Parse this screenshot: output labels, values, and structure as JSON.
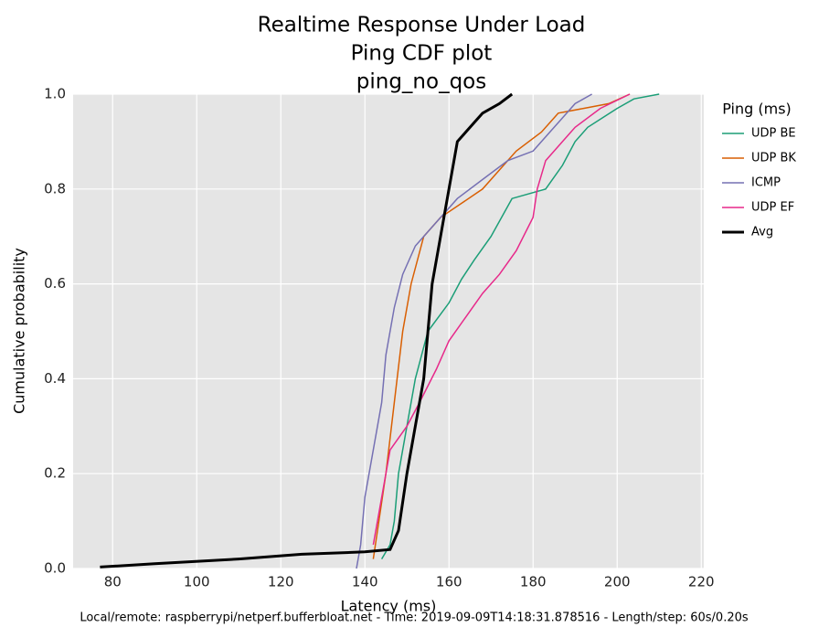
{
  "chart_data": {
    "type": "line",
    "title_lines": [
      "Realtime Response Under Load",
      "Ping CDF plot",
      "ping_no_qos"
    ],
    "x_label": "Latency (ms)",
    "y_label": "Cumulative probability",
    "footer": "Local/remote: raspberrypi/netperf.bufferbloat.net - Time: 2019-09-09T14:18:31.878516 - Length/step: 60s/0.20s",
    "legend_title": "Ping (ms)",
    "legend_position": "outside right",
    "grid": true,
    "xlim": [
      70.6,
      220.6
    ],
    "ylim": [
      0,
      1
    ],
    "xticks": [
      80,
      100,
      120,
      140,
      160,
      180,
      200,
      220
    ],
    "yticks": [
      {
        "value": 0,
        "label": "0.0"
      },
      {
        "value": 0.2,
        "label": "0.2"
      },
      {
        "value": 0.4,
        "label": "0.4"
      },
      {
        "value": 0.6,
        "label": "0.6"
      },
      {
        "value": 0.8,
        "label": "0.8"
      },
      {
        "value": 1,
        "label": "1.0"
      }
    ],
    "series": [
      {
        "name": "UDP BE",
        "color": "#1b9e77",
        "width": 1.5,
        "x": [
          144,
          146,
          147,
          148,
          150,
          152,
          155,
          160,
          163,
          166,
          170,
          175,
          183,
          187,
          190,
          193,
          200,
          204,
          210
        ],
        "values": [
          0.02,
          0.05,
          0.1,
          0.2,
          0.3,
          0.4,
          0.5,
          0.56,
          0.61,
          0.65,
          0.7,
          0.78,
          0.8,
          0.85,
          0.9,
          0.93,
          0.97,
          0.99,
          1.0
        ]
      },
      {
        "name": "UDP BK",
        "color": "#d95f02",
        "width": 1.5,
        "x": [
          142,
          143,
          145,
          147,
          149,
          151,
          154,
          158,
          163,
          168,
          172,
          176,
          182,
          186,
          192,
          198,
          203
        ],
        "values": [
          0.02,
          0.08,
          0.2,
          0.35,
          0.5,
          0.6,
          0.7,
          0.74,
          0.77,
          0.8,
          0.84,
          0.88,
          0.92,
          0.96,
          0.97,
          0.98,
          1.0
        ]
      },
      {
        "name": "ICMP",
        "color": "#7570b3",
        "width": 1.5,
        "x": [
          138,
          139,
          140,
          142,
          144,
          145,
          147,
          149,
          152,
          157,
          162,
          168,
          174,
          180,
          184,
          187,
          190,
          194
        ],
        "values": [
          0.0,
          0.05,
          0.15,
          0.25,
          0.35,
          0.45,
          0.55,
          0.62,
          0.68,
          0.73,
          0.78,
          0.82,
          0.86,
          0.88,
          0.92,
          0.95,
          0.98,
          1.0
        ]
      },
      {
        "name": "UDP EF",
        "color": "#e7298a",
        "width": 1.5,
        "x": [
          142,
          144,
          146,
          150,
          153,
          157,
          160,
          164,
          168,
          172,
          176,
          180,
          181,
          183,
          187,
          190,
          196,
          203
        ],
        "values": [
          0.05,
          0.15,
          0.25,
          0.3,
          0.35,
          0.42,
          0.48,
          0.53,
          0.58,
          0.62,
          0.67,
          0.74,
          0.8,
          0.86,
          0.9,
          0.93,
          0.97,
          1.0
        ]
      },
      {
        "name": "Avg",
        "color": "#000000",
        "width": 3,
        "x": [
          77,
          90,
          110,
          125,
          140,
          146,
          148,
          150,
          152,
          154,
          155,
          156,
          158,
          160,
          161,
          162,
          164,
          166,
          168,
          172,
          175
        ],
        "values": [
          0.003,
          0.01,
          0.02,
          0.03,
          0.035,
          0.04,
          0.08,
          0.2,
          0.3,
          0.4,
          0.5,
          0.6,
          0.7,
          0.8,
          0.85,
          0.9,
          0.92,
          0.94,
          0.96,
          0.98,
          1.0
        ]
      }
    ]
  }
}
